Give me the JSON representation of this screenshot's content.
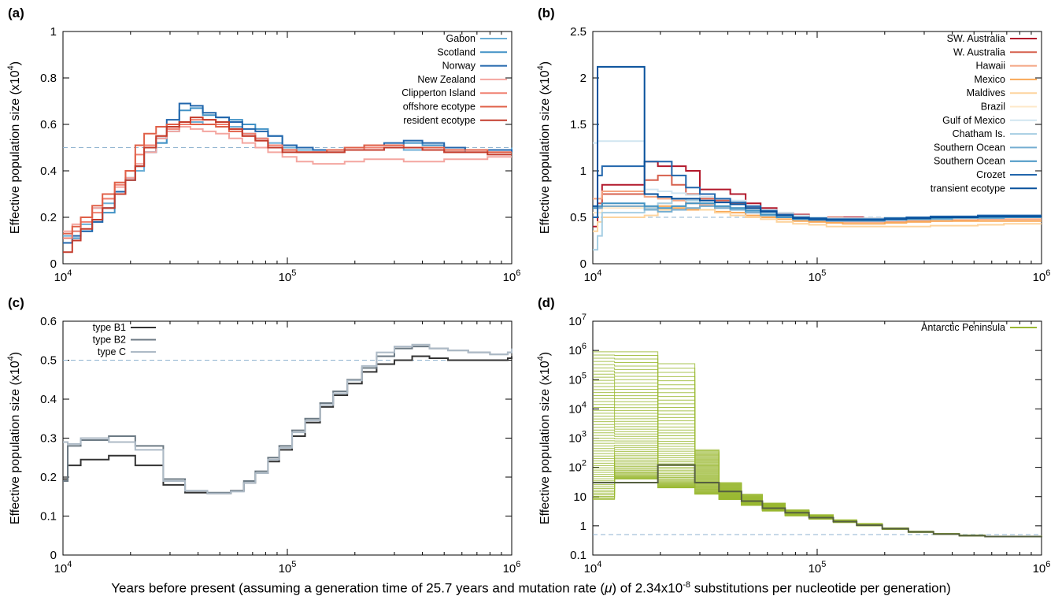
{
  "caption": {
    "prefix": "Years before present (assuming a generation time of 25.7 years and mutation rate (",
    "mu": "μ",
    "middle": ") of 2.34x10",
    "exponent": "-8",
    "suffix": " substitutions per nucleotide per generation)"
  },
  "chart_data": [
    {
      "panel_label": "(a)",
      "type": "line",
      "ylabel": "Effective population size (x10^4)",
      "xscale": "log",
      "xlim": [
        10000,
        1000000
      ],
      "xticks": [
        "10^4",
        "10^5",
        "10^6"
      ],
      "ylim": [
        0,
        1
      ],
      "yticks": [
        "0",
        "0.2",
        "0.4",
        "0.6",
        "0.8",
        "1"
      ],
      "reference_line": 0.5,
      "legend_position": "top-right",
      "x": [
        10000,
        11000,
        12000,
        13500,
        15000,
        17000,
        19000,
        21000,
        23000,
        26000,
        29000,
        33000,
        37000,
        42000,
        48000,
        55000,
        63000,
        72000,
        82000,
        95000,
        110000,
        130000,
        150000,
        180000,
        220000,
        270000,
        330000,
        400000,
        500000,
        620000,
        780000,
        1000000
      ],
      "series": [
        {
          "name": "Gabon",
          "color": "#6baed6",
          "values": [
            0.12,
            0.14,
            0.17,
            0.24,
            0.26,
            0.3,
            0.36,
            0.4,
            0.48,
            0.52,
            0.57,
            0.6,
            0.61,
            0.6,
            0.61,
            0.59,
            0.56,
            0.54,
            0.52,
            0.5,
            0.49,
            0.49,
            0.48,
            0.49,
            0.49,
            0.5,
            0.49,
            0.5,
            0.48,
            0.49,
            0.49,
            0.5
          ]
        },
        {
          "name": "Scotland",
          "color": "#4292c6",
          "values": [
            0.09,
            0.11,
            0.14,
            0.18,
            0.22,
            0.3,
            0.36,
            0.42,
            0.48,
            0.52,
            0.6,
            0.66,
            0.67,
            0.64,
            0.63,
            0.62,
            0.6,
            0.58,
            0.55,
            0.51,
            0.5,
            0.49,
            0.49,
            0.5,
            0.51,
            0.51,
            0.52,
            0.51,
            0.5,
            0.49,
            0.49,
            0.49
          ]
        },
        {
          "name": "Norway",
          "color": "#2166ac",
          "values": [
            0.09,
            0.12,
            0.14,
            0.18,
            0.24,
            0.31,
            0.37,
            0.42,
            0.48,
            0.54,
            0.62,
            0.69,
            0.68,
            0.65,
            0.63,
            0.61,
            0.58,
            0.57,
            0.55,
            0.51,
            0.5,
            0.49,
            0.49,
            0.5,
            0.51,
            0.52,
            0.53,
            0.52,
            0.5,
            0.49,
            0.49,
            0.48
          ]
        },
        {
          "name": "New Zealand",
          "color": "#f4a6a0",
          "values": [
            0.14,
            0.17,
            0.2,
            0.24,
            0.28,
            0.33,
            0.37,
            0.43,
            0.48,
            0.54,
            0.57,
            0.59,
            0.58,
            0.57,
            0.56,
            0.54,
            0.52,
            0.5,
            0.48,
            0.46,
            0.44,
            0.43,
            0.43,
            0.44,
            0.45,
            0.45,
            0.44,
            0.44,
            0.45,
            0.45,
            0.46,
            0.46
          ]
        },
        {
          "name": "Clipperton Island",
          "color": "#f08070",
          "values": [
            0.11,
            0.14,
            0.18,
            0.22,
            0.28,
            0.34,
            0.4,
            0.47,
            0.51,
            0.55,
            0.58,
            0.6,
            0.62,
            0.62,
            0.6,
            0.58,
            0.56,
            0.54,
            0.51,
            0.49,
            0.48,
            0.48,
            0.48,
            0.49,
            0.5,
            0.5,
            0.5,
            0.49,
            0.48,
            0.48,
            0.48,
            0.48
          ]
        },
        {
          "name": "offshore ecotype",
          "color": "#e06048",
          "values": [
            0.13,
            0.16,
            0.2,
            0.25,
            0.3,
            0.35,
            0.4,
            0.51,
            0.56,
            0.59,
            0.6,
            0.61,
            0.6,
            0.6,
            0.59,
            0.57,
            0.55,
            0.53,
            0.5,
            0.49,
            0.48,
            0.48,
            0.49,
            0.5,
            0.51,
            0.51,
            0.5,
            0.5,
            0.49,
            0.49,
            0.48,
            0.48
          ]
        },
        {
          "name": "resident ecotype",
          "color": "#c43c2c",
          "values": [
            0.05,
            0.1,
            0.15,
            0.19,
            0.24,
            0.3,
            0.36,
            0.42,
            0.5,
            0.55,
            0.59,
            0.61,
            0.63,
            0.62,
            0.61,
            0.58,
            0.55,
            0.53,
            0.5,
            0.48,
            0.48,
            0.48,
            0.48,
            0.49,
            0.49,
            0.5,
            0.5,
            0.49,
            0.48,
            0.48,
            0.47,
            0.47
          ]
        }
      ]
    },
    {
      "panel_label": "(b)",
      "type": "line",
      "ylabel": "Effective population size (x10^4)",
      "xscale": "log",
      "xlim": [
        10000,
        1000000
      ],
      "xticks": [
        "10^4",
        "10^5",
        "10^6"
      ],
      "ylim": [
        0,
        2.5
      ],
      "yticks": [
        "0",
        "0.5",
        "1",
        "1.5",
        "2",
        "2.5"
      ],
      "reference_line": 0.5,
      "legend_position": "top-right",
      "x": [
        10000,
        10500,
        11000,
        12000,
        13500,
        15000,
        17000,
        19500,
        22500,
        26000,
        30000,
        35000,
        41000,
        48000,
        56000,
        66000,
        78000,
        92000,
        110000,
        130000,
        160000,
        200000,
        250000,
        320000,
        400000,
        520000,
        680000,
        1000000
      ],
      "series": [
        {
          "name": "SW. Australia",
          "color": "#b2182b",
          "values": [
            0.4,
            0.6,
            0.85,
            0.85,
            0.85,
            0.85,
            1.1,
            1.05,
            1.05,
            1.0,
            0.8,
            0.8,
            0.75,
            0.65,
            0.6,
            0.55,
            0.53,
            0.5,
            0.5,
            0.5,
            0.49,
            0.49,
            0.5,
            0.5,
            0.5,
            0.51,
            0.51,
            0.51
          ]
        },
        {
          "name": "W. Australia",
          "color": "#d6604d",
          "values": [
            0.5,
            0.65,
            0.75,
            0.75,
            0.75,
            0.75,
            0.9,
            0.95,
            0.85,
            0.75,
            0.7,
            0.68,
            0.65,
            0.6,
            0.58,
            0.55,
            0.52,
            0.5,
            0.5,
            0.49,
            0.49,
            0.48,
            0.48,
            0.49,
            0.5,
            0.5,
            0.5,
            0.5
          ]
        },
        {
          "name": "Hawaii",
          "color": "#f4a582",
          "values": [
            0.7,
            0.7,
            0.78,
            0.78,
            0.78,
            0.78,
            0.72,
            0.7,
            0.68,
            0.65,
            0.63,
            0.6,
            0.58,
            0.55,
            0.52,
            0.5,
            0.48,
            0.46,
            0.45,
            0.45,
            0.45,
            0.45,
            0.46,
            0.46,
            0.47,
            0.48,
            0.48,
            0.48
          ]
        },
        {
          "name": "Mexico",
          "color": "#f9a857",
          "values": [
            0.6,
            0.62,
            0.62,
            0.62,
            0.62,
            0.62,
            0.6,
            0.62,
            0.6,
            0.58,
            0.58,
            0.56,
            0.55,
            0.52,
            0.5,
            0.48,
            0.46,
            0.45,
            0.44,
            0.43,
            0.43,
            0.44,
            0.45,
            0.46,
            0.46,
            0.46,
            0.46,
            0.46
          ]
        },
        {
          "name": "Maldives",
          "color": "#fdd49e",
          "values": [
            0.35,
            0.45,
            0.5,
            0.5,
            0.5,
            0.5,
            0.52,
            0.58,
            0.62,
            0.6,
            0.58,
            0.55,
            0.52,
            0.5,
            0.48,
            0.45,
            0.43,
            0.42,
            0.4,
            0.4,
            0.4,
            0.4,
            0.4,
            0.41,
            0.41,
            0.42,
            0.43,
            0.43
          ]
        },
        {
          "name": "Brazil",
          "color": "#fee8c8",
          "values": [
            0.55,
            0.55,
            0.6,
            0.6,
            0.6,
            0.6,
            0.62,
            0.65,
            0.7,
            0.68,
            0.65,
            0.62,
            0.6,
            0.58,
            0.55,
            0.52,
            0.5,
            0.48,
            0.47,
            0.47,
            0.47,
            0.48,
            0.49,
            0.49,
            0.5,
            0.5,
            0.5,
            0.5
          ]
        },
        {
          "name": "Gulf of Mexico",
          "color": "#d1e5f0",
          "values": [
            1.3,
            1.32,
            1.32,
            1.32,
            1.32,
            1.32,
            0.8,
            0.78,
            0.76,
            0.74,
            0.72,
            0.7,
            0.68,
            0.62,
            0.58,
            0.55,
            0.52,
            0.5,
            0.49,
            0.49,
            0.49,
            0.5,
            0.5,
            0.5,
            0.5,
            0.5,
            0.5,
            0.5
          ]
        },
        {
          "name": "Chatham Is.",
          "color": "#a6cee3",
          "values": [
            0.15,
            0.3,
            0.55,
            0.55,
            0.55,
            0.55,
            0.6,
            0.65,
            0.7,
            0.68,
            0.65,
            0.62,
            0.6,
            0.58,
            0.55,
            0.52,
            0.5,
            0.49,
            0.48,
            0.48,
            0.48,
            0.49,
            0.5,
            0.5,
            0.51,
            0.51,
            0.51,
            0.51
          ]
        },
        {
          "name": "Southern Ocean",
          "color": "#74add1",
          "values": [
            0.5,
            0.6,
            0.62,
            0.62,
            0.62,
            0.62,
            0.58,
            0.56,
            0.58,
            0.6,
            0.62,
            0.6,
            0.58,
            0.55,
            0.52,
            0.5,
            0.48,
            0.47,
            0.46,
            0.46,
            0.46,
            0.47,
            0.48,
            0.48,
            0.49,
            0.49,
            0.5,
            0.5
          ]
        },
        {
          "name": "Southern Ocean",
          "color": "#4393c3",
          "values": [
            0.6,
            0.62,
            0.65,
            0.65,
            0.65,
            0.65,
            0.62,
            0.6,
            0.62,
            0.65,
            0.65,
            0.62,
            0.6,
            0.57,
            0.53,
            0.5,
            0.48,
            0.47,
            0.47,
            0.47,
            0.47,
            0.48,
            0.48,
            0.49,
            0.5,
            0.5,
            0.5,
            0.5
          ]
        },
        {
          "name": "Crozet",
          "color": "#2166ac",
          "values": [
            0.5,
            0.95,
            1.05,
            1.05,
            1.05,
            1.05,
            1.1,
            1.1,
            0.95,
            0.82,
            0.75,
            0.7,
            0.66,
            0.62,
            0.57,
            0.53,
            0.5,
            0.49,
            0.48,
            0.48,
            0.48,
            0.49,
            0.5,
            0.51,
            0.51,
            0.52,
            0.52,
            0.52
          ]
        },
        {
          "name": "transient ecotype",
          "color": "#08519c",
          "values": [
            0.62,
            2.12,
            2.12,
            2.12,
            2.12,
            2.12,
            0.75,
            0.72,
            0.7,
            0.7,
            0.68,
            0.66,
            0.64,
            0.6,
            0.56,
            0.52,
            0.49,
            0.48,
            0.47,
            0.47,
            0.47,
            0.48,
            0.49,
            0.5,
            0.5,
            0.51,
            0.51,
            0.51
          ]
        }
      ]
    },
    {
      "panel_label": "(c)",
      "type": "line",
      "ylabel": "Effective population size (x10^4)",
      "xscale": "log",
      "xlim": [
        10000,
        1000000
      ],
      "xticks": [
        "10^4",
        "10^5",
        "10^6"
      ],
      "ylim": [
        0,
        0.6
      ],
      "yticks": [
        "0",
        "0.1",
        "0.2",
        "0.3",
        "0.4",
        "0.5",
        "0.6"
      ],
      "reference_line": 0.5,
      "legend_position": "top-left",
      "x": [
        10000,
        10500,
        12000,
        16000,
        21000,
        28000,
        35000,
        44000,
        56000,
        64000,
        72000,
        82000,
        92000,
        105000,
        120000,
        140000,
        160000,
        185000,
        215000,
        250000,
        300000,
        360000,
        430000,
        520000,
        640000,
        800000,
        960000,
        1000000
      ],
      "series": [
        {
          "name": "type B1",
          "color": "#333333",
          "values": [
            0.195,
            0.23,
            0.245,
            0.255,
            0.23,
            0.18,
            0.16,
            0.158,
            0.165,
            0.185,
            0.21,
            0.24,
            0.27,
            0.305,
            0.34,
            0.38,
            0.41,
            0.44,
            0.47,
            0.49,
            0.5,
            0.51,
            0.505,
            0.5,
            0.5,
            0.5,
            0.505,
            0.51
          ]
        },
        {
          "name": "type B2",
          "color": "#6c7a84",
          "values": [
            0.19,
            0.28,
            0.295,
            0.305,
            0.28,
            0.195,
            0.165,
            0.16,
            0.165,
            0.19,
            0.215,
            0.25,
            0.28,
            0.32,
            0.35,
            0.39,
            0.42,
            0.45,
            0.48,
            0.51,
            0.53,
            0.535,
            0.53,
            0.525,
            0.52,
            0.515,
            0.52,
            0.525
          ]
        },
        {
          "name": "type C",
          "color": "#adbac6",
          "values": [
            0.29,
            0.285,
            0.3,
            0.29,
            0.27,
            0.19,
            0.165,
            0.158,
            0.163,
            0.185,
            0.21,
            0.245,
            0.275,
            0.315,
            0.345,
            0.385,
            0.415,
            0.448,
            0.485,
            0.52,
            0.535,
            0.54,
            0.53,
            0.525,
            0.52,
            0.515,
            0.52,
            0.53
          ]
        }
      ]
    },
    {
      "panel_label": "(d)",
      "type": "line",
      "ylabel": "Effective population size (x10^4)",
      "xscale": "log",
      "xlim": [
        10000,
        1000000
      ],
      "xticks": [
        "10^4",
        "10^5",
        "10^6"
      ],
      "yscale": "log",
      "ylim": [
        0.1,
        10000000
      ],
      "yticks": [
        "0.1",
        "1",
        "10",
        "10^2",
        "10^3",
        "10^4",
        "10^5",
        "10^6",
        "10^7"
      ],
      "reference_line": 0.5,
      "legend_position": "top-right",
      "series": [
        {
          "name": "Antarctic Peninsula",
          "color": "#9ab832",
          "x": [
            10000,
            12500,
            19500,
            28500,
            36500,
            46000,
            57000,
            72000,
            92000,
            118000,
            150000,
            195000,
            255000,
            330000,
            430000,
            560000,
            730000,
            1000000
          ],
          "values_low": [
            8,
            40,
            20,
            12,
            8,
            5,
            3.2,
            2.2,
            1.7,
            1.3,
            1.0,
            0.75,
            0.6,
            0.5,
            0.45,
            0.42,
            0.42,
            0.45
          ],
          "values_high": [
            900000,
            900000,
            350000,
            400,
            30,
            12,
            6,
            3.5,
            2.4,
            1.6,
            1.2,
            0.85,
            0.65,
            0.55,
            0.48,
            0.44,
            0.44,
            0.47
          ]
        },
        {
          "name": "",
          "color": "#555f40",
          "x": [
            10000,
            12500,
            19500,
            28500,
            36500,
            46000,
            57000,
            72000,
            92000,
            118000,
            150000,
            195000,
            255000,
            330000,
            430000,
            560000,
            730000,
            1000000
          ],
          "values": [
            30,
            30,
            120,
            30,
            15,
            7,
            4,
            2.8,
            1.9,
            1.4,
            1.05,
            0.8,
            0.62,
            0.52,
            0.46,
            0.43,
            0.43,
            0.46
          ]
        }
      ]
    }
  ]
}
